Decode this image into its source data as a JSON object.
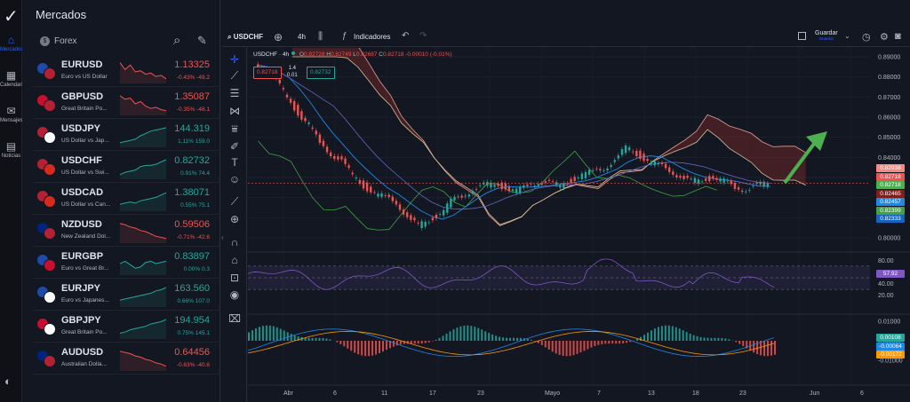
{
  "nav": {
    "items": [
      {
        "label": "Mercados",
        "icon": "home-icon",
        "active": true
      },
      {
        "label": "Calendario",
        "icon": "calendar-icon",
        "active": false
      },
      {
        "label": "Mensajes",
        "icon": "mail-icon",
        "active": false
      },
      {
        "label": "Noticias",
        "icon": "news-icon",
        "active": false
      }
    ]
  },
  "watchlist": {
    "title": "Mercados",
    "category": "Forex",
    "items": [
      {
        "symbol": "EURUSD",
        "desc": "Euro vs US Dollar",
        "price": "1.13325",
        "change": "-0.43% -49.2",
        "dir": "dn",
        "flags": [
          "#1e4aa8",
          "#b22234"
        ],
        "spark": [
          0.9,
          0.6,
          0.8,
          0.5,
          0.55,
          0.4,
          0.45,
          0.3,
          0.35,
          0.2
        ]
      },
      {
        "symbol": "GBPUSD",
        "desc": "Great Britain Po...",
        "price": "1.35087",
        "change": "-0.35% -48.1",
        "dir": "dn",
        "flags": [
          "#c8102e",
          "#b22234"
        ],
        "spark": [
          0.85,
          0.7,
          0.75,
          0.5,
          0.6,
          0.4,
          0.3,
          0.35,
          0.25,
          0.2
        ]
      },
      {
        "symbol": "USDJPY",
        "desc": "US Dollar vs Jap...",
        "price": "144.319",
        "change": "1.11% 159.0",
        "dir": "up",
        "flags": [
          "#b22234",
          "#ffffff"
        ],
        "spark": [
          0.2,
          0.25,
          0.3,
          0.35,
          0.5,
          0.6,
          0.7,
          0.75,
          0.8,
          0.85
        ]
      },
      {
        "symbol": "USDCHF",
        "desc": "US Dollar vs Swi...",
        "price": "0.82732",
        "change": "0.91% 74.4",
        "dir": "up",
        "flags": [
          "#b22234",
          "#d52b1e"
        ],
        "spark": [
          0.2,
          0.3,
          0.35,
          0.4,
          0.55,
          0.6,
          0.6,
          0.65,
          0.75,
          0.85
        ]
      },
      {
        "symbol": "USDCAD",
        "desc": "US Dollar vs Can...",
        "price": "1.38071",
        "change": "0.55% 75.1",
        "dir": "up",
        "flags": [
          "#b22234",
          "#d52b1e"
        ],
        "spark": [
          0.3,
          0.35,
          0.4,
          0.35,
          0.45,
          0.5,
          0.55,
          0.6,
          0.7,
          0.8
        ]
      },
      {
        "symbol": "NZDUSD",
        "desc": "New Zealand Dol...",
        "price": "0.59506",
        "change": "-0.71% -42.6",
        "dir": "dn",
        "flags": [
          "#00247d",
          "#b22234"
        ],
        "spark": [
          0.85,
          0.8,
          0.7,
          0.65,
          0.55,
          0.5,
          0.4,
          0.3,
          0.25,
          0.2
        ]
      },
      {
        "symbol": "EURGBP",
        "desc": "Euro vs Great Br...",
        "price": "0.83897",
        "change": "0.00% 0.3",
        "dir": "up",
        "flags": [
          "#1e4aa8",
          "#c8102e"
        ],
        "spark": [
          0.5,
          0.6,
          0.45,
          0.3,
          0.35,
          0.55,
          0.6,
          0.5,
          0.55,
          0.6
        ]
      },
      {
        "symbol": "EURJPY",
        "desc": "Euro vs Japanes...",
        "price": "163.560",
        "change": "0.66% 107.0",
        "dir": "up",
        "flags": [
          "#1e4aa8",
          "#ffffff"
        ],
        "spark": [
          0.3,
          0.35,
          0.4,
          0.45,
          0.5,
          0.55,
          0.6,
          0.7,
          0.75,
          0.85
        ]
      },
      {
        "symbol": "GBPJPY",
        "desc": "Great Britain Po...",
        "price": "194.954",
        "change": "0.75% 145.1",
        "dir": "up",
        "flags": [
          "#c8102e",
          "#ffffff"
        ],
        "spark": [
          0.25,
          0.3,
          0.4,
          0.45,
          0.5,
          0.55,
          0.65,
          0.7,
          0.75,
          0.85
        ]
      },
      {
        "symbol": "AUDUSD",
        "desc": "Australian Dolla...",
        "price": "0.64456",
        "change": "-0.63% -40.6",
        "dir": "dn",
        "flags": [
          "#00247d",
          "#b22234"
        ],
        "spark": [
          0.85,
          0.8,
          0.75,
          0.65,
          0.6,
          0.5,
          0.45,
          0.35,
          0.3,
          0.2
        ]
      }
    ]
  },
  "toolbar": {
    "symbol": "USDCHF",
    "timeframe": "4h",
    "indicators": "Indicadores",
    "save": "Guardar",
    "save_sub": "Guardar"
  },
  "legend": {
    "title": "USDCHF · 4h",
    "o_label": "O",
    "o": "0.82728",
    "h_label": "H",
    "h": "0.82749",
    "l_label": "L",
    "l": "0.82687",
    "c_label": "C",
    "c": "0.82718",
    "chg": "-0.00010 (-0.01%)",
    "sell": "0.82718",
    "buy": "0.82732",
    "spread_top": "1.4",
    "spread_bottom": "0.01"
  },
  "colors": {
    "up": "#26a69a",
    "down": "#ef5350",
    "accent": "#2962ff",
    "rsi": "#7e57c2",
    "arrow": "#4caf50"
  },
  "chart_data": {
    "type": "candlestick",
    "x_labels": [
      "Abr",
      "6",
      "11",
      "17",
      "23",
      "Mayo",
      "7",
      "13",
      "18",
      "23",
      "Jun",
      "6"
    ],
    "price_axis": [
      "0.89000",
      "0.88000",
      "0.87000",
      "0.86000",
      "0.85000",
      "0.84000",
      "0.83000",
      "0.82000",
      "0.81000",
      "0.80000"
    ],
    "price_tags": [
      {
        "value": "0.82938",
        "color": "#f28b82"
      },
      {
        "value": "0.82718",
        "color": "#ef5350"
      },
      {
        "value": "0.82718",
        "color": "#4caf50"
      },
      {
        "value": "0.82465",
        "color": "#7b1f1f"
      },
      {
        "value": "0.82457",
        "color": "#1e88e5"
      },
      {
        "value": "0.82399",
        "color": "#43a047"
      },
      {
        "value": "0.82333",
        "color": "#1565c0"
      }
    ],
    "rsi_axis": [
      "80.00",
      "60.00",
      "40.00",
      "20.00"
    ],
    "rsi_value": "57.92",
    "macd_axis": [
      "0.01000",
      "0.00000",
      "-0.01000"
    ],
    "macd_tags": [
      {
        "value": "0.00108",
        "color": "#26a69a"
      },
      {
        "value": "-0.00064",
        "color": "#1e88e5"
      },
      {
        "value": "-0.00172",
        "color": "#ff9800"
      }
    ],
    "close": [
      0.886,
      0.884,
      0.878,
      0.87,
      0.862,
      0.856,
      0.847,
      0.842,
      0.838,
      0.831,
      0.826,
      0.822,
      0.82,
      0.818,
      0.81,
      0.806,
      0.809,
      0.812,
      0.818,
      0.821,
      0.824,
      0.826,
      0.827,
      0.825,
      0.823,
      0.826,
      0.828,
      0.827,
      0.826,
      0.829,
      0.831,
      0.833,
      0.835,
      0.838,
      0.845,
      0.842,
      0.838,
      0.836,
      0.834,
      0.83,
      0.828,
      0.829,
      0.83,
      0.828,
      0.825,
      0.824,
      0.826,
      0.8272
    ]
  }
}
